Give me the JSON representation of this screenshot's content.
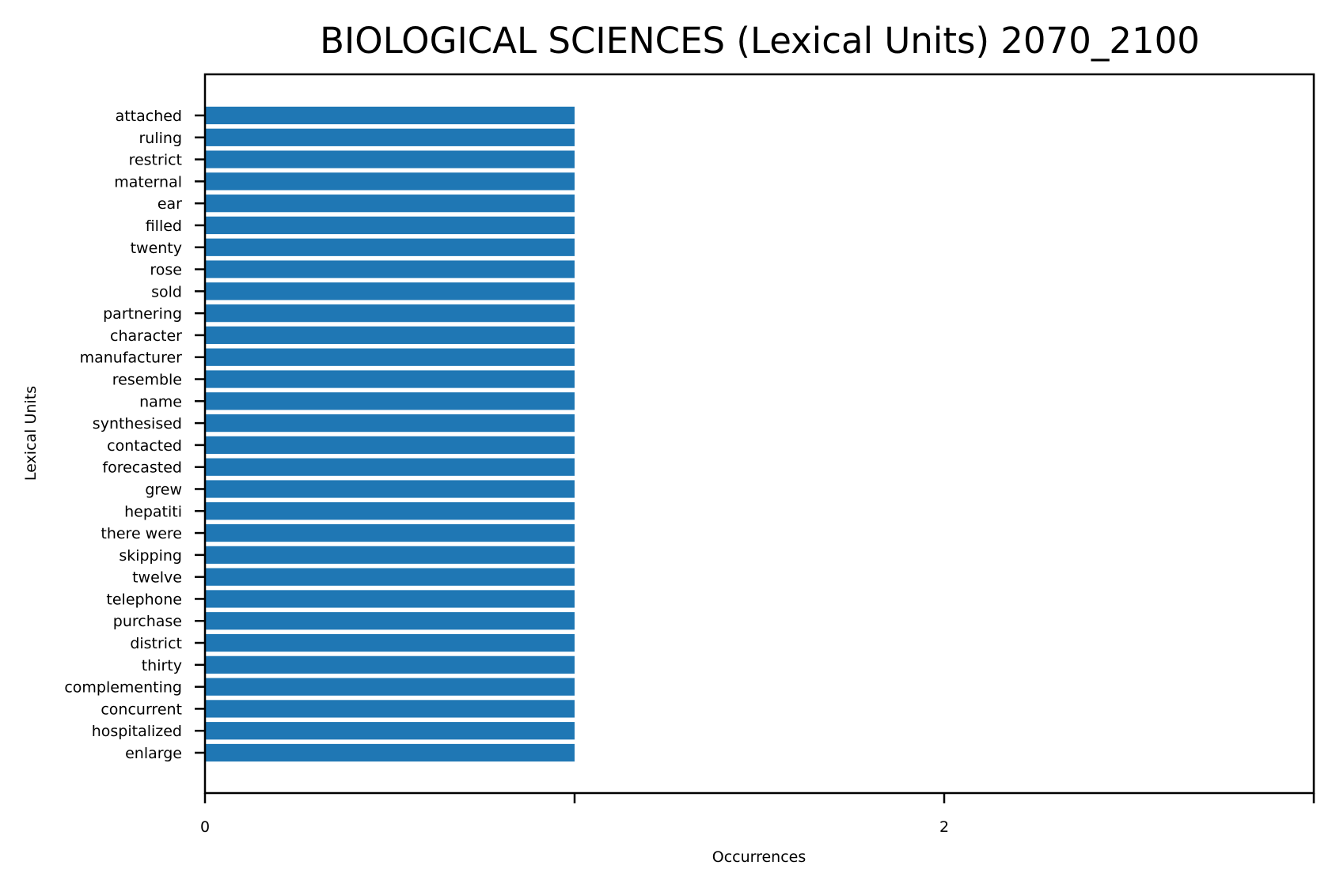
{
  "chart_data": {
    "type": "bar",
    "orientation": "horizontal",
    "title": "BIOLOGICAL SCIENCES (Lexical Units) 2070_2100",
    "xlabel": "Occurrences",
    "ylabel": "Lexical Units",
    "xlim": [
      0,
      3
    ],
    "xticks": [
      0,
      1,
      2,
      3
    ],
    "xtick_labels": [
      "0",
      "",
      "2",
      ""
    ],
    "bar_color": "#1f77b4",
    "grid": false,
    "categories": [
      "attached",
      "ruling",
      "restrict",
      "maternal",
      "ear",
      "filled",
      "twenty",
      "rose",
      "sold",
      "partnering",
      "character",
      "manufacturer",
      "resemble",
      "name",
      "synthesised",
      "contacted",
      "forecasted",
      "grew",
      "hepatiti",
      "there were",
      "skipping",
      "twelve",
      "telephone",
      "purchase",
      "district",
      "thirty",
      "complementing",
      "concurrent",
      "hospitalized",
      "enlarge"
    ],
    "values": [
      1,
      1,
      1,
      1,
      1,
      1,
      1,
      1,
      1,
      1,
      1,
      1,
      1,
      1,
      1,
      1,
      1,
      1,
      1,
      1,
      1,
      1,
      1,
      1,
      1,
      1,
      1,
      1,
      1,
      1
    ]
  }
}
